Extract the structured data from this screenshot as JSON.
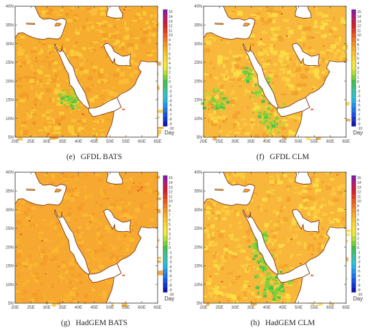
{
  "longitude_ticks": [
    "20E",
    "25E",
    "30E",
    "35E",
    "40E",
    "45E",
    "50E",
    "55E",
    "60E",
    "65E"
  ],
  "latitude_ticks": [
    "40N",
    "35N",
    "30N",
    "25N",
    "20N",
    "15N",
    "10N",
    "5N"
  ],
  "colorbar": {
    "levels": [
      "15",
      "14",
      "13",
      "12",
      "11",
      "10",
      "9",
      "8",
      "7",
      "6",
      "5",
      "4",
      "3",
      "2",
      "1",
      "0",
      "-1",
      "-2",
      "-3",
      "-4",
      "-5",
      "-6",
      "-7",
      "-8",
      "-9",
      "-10"
    ],
    "colors": [
      "#8a1aa8",
      "#b01a7a",
      "#c81a4a",
      "#d8202a",
      "#e43a20",
      "#ec5a1e",
      "#f2781e",
      "#f6941e",
      "#f8ae22",
      "#fac428",
      "#fcd630",
      "#fce43a",
      "#e8ec3c",
      "#b8e030",
      "#7cd238",
      "#44c24a",
      "#3ec07a",
      "#38c2a6",
      "#2ec2cc",
      "#28b4e2",
      "#2294ee",
      "#1c74f0",
      "#1854ea",
      "#1434d8",
      "#1016bc"
    ],
    "unit": "Day"
  },
  "panels": [
    {
      "id": "e",
      "letter": "(e)",
      "label": "GFDL BATS",
      "green": "few"
    },
    {
      "id": "f",
      "letter": "(f)",
      "label": "GFDL CLM",
      "green": "some"
    },
    {
      "id": "g",
      "letter": "(g)",
      "label": "HadGEM BATS",
      "green": "none"
    },
    {
      "id": "h",
      "letter": "(h)",
      "label": "HadGEM CLM",
      "green": "more"
    }
  ]
}
